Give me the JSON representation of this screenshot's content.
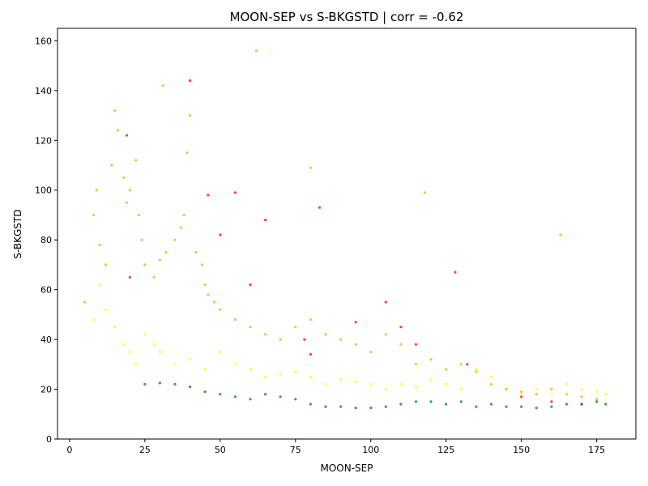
{
  "chart_data": {
    "type": "scatter",
    "title": "MOON-SEP vs S-BKGSTD | corr = -0.62",
    "xlabel": "MOON-SEP",
    "ylabel": "S-BKGSTD",
    "xlim": [
      -4,
      188
    ],
    "ylim": [
      0,
      165
    ],
    "xticks": [
      0,
      25,
      50,
      75,
      100,
      125,
      150,
      175
    ],
    "yticks": [
      0,
      20,
      40,
      60,
      80,
      100,
      120,
      140,
      160
    ],
    "grid": false,
    "legend": "none",
    "series": [
      {
        "color": "#008000",
        "points": [
          [
            25,
            22
          ],
          [
            30,
            22.5
          ],
          [
            35,
            22
          ],
          [
            40,
            21
          ],
          [
            45,
            19
          ],
          [
            50,
            18
          ],
          [
            55,
            17
          ],
          [
            60,
            16
          ],
          [
            65,
            18
          ],
          [
            70,
            17
          ],
          [
            75,
            16
          ],
          [
            80,
            14
          ],
          [
            85,
            13
          ],
          [
            90,
            13
          ],
          [
            95,
            12.5
          ],
          [
            100,
            12.5
          ],
          [
            105,
            13
          ],
          [
            110,
            14
          ],
          [
            115,
            15
          ],
          [
            120,
            15
          ],
          [
            125,
            14
          ],
          [
            130,
            15
          ],
          [
            135,
            13
          ],
          [
            140,
            14
          ],
          [
            145,
            13
          ],
          [
            150,
            13
          ],
          [
            155,
            12.5
          ],
          [
            160,
            13
          ],
          [
            165,
            14
          ],
          [
            170,
            14
          ],
          [
            175,
            15
          ],
          [
            178,
            14
          ]
        ]
      },
      {
        "color": "#ffff00",
        "points": [
          [
            8,
            48
          ],
          [
            10,
            62
          ],
          [
            12,
            52
          ],
          [
            15,
            45
          ],
          [
            18,
            38
          ],
          [
            20,
            35
          ],
          [
            22,
            30
          ],
          [
            25,
            42
          ],
          [
            28,
            38
          ],
          [
            30,
            35
          ],
          [
            35,
            30
          ],
          [
            40,
            32
          ],
          [
            45,
            28
          ],
          [
            50,
            35
          ],
          [
            55,
            30
          ],
          [
            60,
            28
          ],
          [
            65,
            25
          ],
          [
            70,
            26
          ],
          [
            75,
            27
          ],
          [
            80,
            25
          ],
          [
            85,
            22
          ],
          [
            90,
            24
          ],
          [
            95,
            23
          ],
          [
            100,
            22
          ],
          [
            105,
            20
          ],
          [
            110,
            22
          ],
          [
            115,
            21
          ],
          [
            120,
            24
          ],
          [
            125,
            22
          ],
          [
            130,
            20
          ],
          [
            135,
            28
          ],
          [
            140,
            25
          ],
          [
            145,
            20
          ],
          [
            150,
            18
          ],
          [
            155,
            20
          ],
          [
            160,
            18
          ],
          [
            165,
            22
          ],
          [
            170,
            20
          ],
          [
            175,
            19
          ],
          [
            178,
            18
          ]
        ]
      },
      {
        "color": "#ffa500",
        "points": [
          [
            5,
            55
          ],
          [
            8,
            90
          ],
          [
            9,
            100
          ],
          [
            10,
            78
          ],
          [
            12,
            70
          ],
          [
            14,
            110
          ],
          [
            15,
            132
          ],
          [
            16,
            124
          ],
          [
            18,
            105
          ],
          [
            19,
            95
          ],
          [
            20,
            100
          ],
          [
            22,
            112
          ],
          [
            23,
            90
          ],
          [
            24,
            80
          ],
          [
            25,
            70
          ],
          [
            28,
            65
          ],
          [
            30,
            72
          ],
          [
            32,
            75
          ],
          [
            35,
            80
          ],
          [
            37,
            85
          ],
          [
            38,
            90
          ],
          [
            39,
            115
          ],
          [
            40,
            130
          ],
          [
            42,
            75
          ],
          [
            44,
            70
          ],
          [
            45,
            62
          ],
          [
            46,
            58
          ],
          [
            48,
            55
          ],
          [
            50,
            52
          ],
          [
            55,
            48
          ],
          [
            60,
            45
          ],
          [
            65,
            42
          ],
          [
            70,
            40
          ],
          [
            75,
            45
          ],
          [
            80,
            48
          ],
          [
            85,
            42
          ],
          [
            90,
            40
          ],
          [
            95,
            38
          ],
          [
            100,
            35
          ],
          [
            105,
            42
          ],
          [
            110,
            38
          ],
          [
            115,
            30
          ],
          [
            120,
            32
          ],
          [
            125,
            28
          ],
          [
            130,
            30
          ],
          [
            135,
            27
          ],
          [
            140,
            22
          ],
          [
            145,
            20
          ],
          [
            150,
            19
          ],
          [
            155,
            18
          ],
          [
            160,
            20
          ],
          [
            163,
            82
          ],
          [
            165,
            18
          ],
          [
            170,
            17
          ],
          [
            175,
            16
          ],
          [
            62,
            156
          ],
          [
            31,
            142
          ],
          [
            80,
            109
          ],
          [
            118,
            99
          ]
        ]
      },
      {
        "color": "#ff0000",
        "points": [
          [
            19,
            122
          ],
          [
            20,
            65
          ],
          [
            40,
            144
          ],
          [
            46,
            98
          ],
          [
            50,
            82
          ],
          [
            55,
            99
          ],
          [
            60,
            62
          ],
          [
            65,
            88
          ],
          [
            78,
            40
          ],
          [
            80,
            34
          ],
          [
            83,
            93
          ],
          [
            95,
            47
          ],
          [
            105,
            55
          ],
          [
            110,
            45
          ],
          [
            115,
            38
          ],
          [
            128,
            67
          ],
          [
            132,
            30
          ],
          [
            150,
            17
          ],
          [
            160,
            15
          ],
          [
            170,
            14
          ]
        ]
      }
    ]
  }
}
